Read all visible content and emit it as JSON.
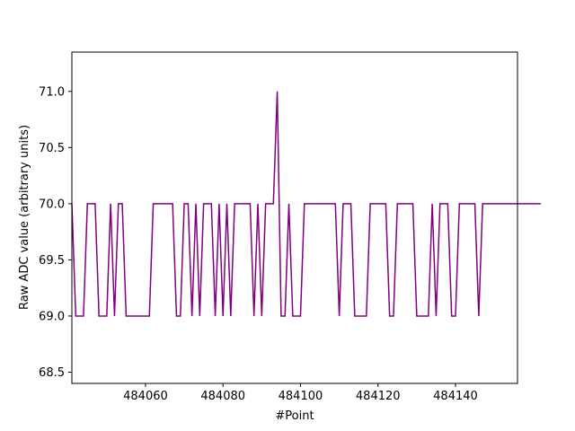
{
  "chart_data": {
    "type": "line",
    "title": "",
    "xlabel": "#Point",
    "ylabel": "Raw ADC value (arbitrary units)",
    "xlim": [
      484041,
      484156
    ],
    "ylim": [
      68.4,
      71.35
    ],
    "grid": false,
    "x_ticks": [
      {
        "value": 484060,
        "label": "484060"
      },
      {
        "value": 484080,
        "label": "484080"
      },
      {
        "value": 484100,
        "label": "484100"
      },
      {
        "value": 484120,
        "label": "484120"
      },
      {
        "value": 484140,
        "label": "484140"
      }
    ],
    "y_ticks": [
      {
        "value": 68.5,
        "label": "68.5"
      },
      {
        "value": 69.0,
        "label": "69.0"
      },
      {
        "value": 69.5,
        "label": "69.5"
      },
      {
        "value": 70.0,
        "label": "70.0"
      },
      {
        "value": 70.5,
        "label": "70.5"
      },
      {
        "value": 71.0,
        "label": "71.0"
      }
    ],
    "series": [
      {
        "color": "#800080",
        "x_start": 484041,
        "x_step": 1,
        "values": [
          70,
          69,
          69,
          69,
          70,
          70,
          70,
          69,
          69,
          69,
          70,
          69,
          70,
          70,
          69,
          69,
          69,
          69,
          69,
          69,
          69,
          70,
          70,
          70,
          70,
          70,
          70,
          69,
          69,
          70,
          70,
          69,
          70,
          69,
          70,
          70,
          70,
          69,
          70,
          69,
          70,
          69,
          70,
          70,
          70,
          70,
          70,
          69,
          70,
          69,
          70,
          70,
          70,
          71,
          69,
          69,
          70,
          69,
          69,
          69,
          70,
          70,
          70,
          70,
          70,
          70,
          70,
          70,
          70,
          69,
          70,
          70,
          70,
          69,
          69,
          69,
          69,
          70,
          70,
          70,
          70,
          70,
          69,
          69,
          70,
          70,
          70,
          70,
          70,
          69,
          69,
          69,
          69,
          70,
          69,
          70,
          70,
          70,
          69,
          69,
          70,
          70,
          70,
          70,
          70,
          69,
          70,
          70,
          70,
          70,
          70,
          70,
          70,
          70,
          70,
          70,
          70,
          70,
          70,
          70,
          70,
          70
        ]
      }
    ]
  }
}
